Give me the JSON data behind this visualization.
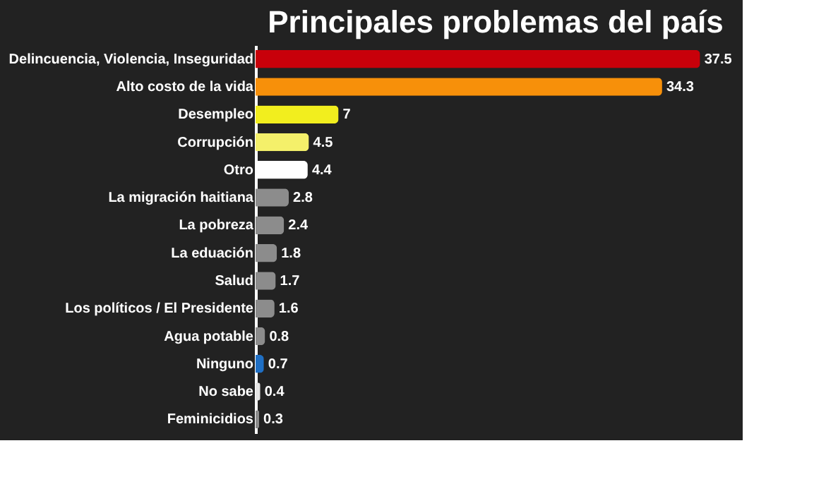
{
  "chart_data": {
    "type": "bar",
    "orientation": "horizontal",
    "title": "Principales problemas del país",
    "categories": [
      "Delincuencia, Violencia, Inseguridad",
      "Alto costo de la vida",
      "Desempleo",
      "Corrupción",
      "Otro",
      "La migración haitiana",
      "La pobreza",
      "La eduación",
      "Salud",
      "Los políticos / El Presidente",
      "Agua potable",
      "Ninguno",
      "No sabe",
      "Feminicidios"
    ],
    "values": [
      37.5,
      34.3,
      7,
      4.5,
      4.4,
      2.8,
      2.4,
      1.8,
      1.7,
      1.6,
      0.8,
      0.7,
      0.4,
      0.3
    ],
    "colors": [
      "#c8000a",
      "#f7900a",
      "#f2ee1e",
      "#f4f06a",
      "#ffffff",
      "#8c8c8c",
      "#8c8c8c",
      "#8c8c8c",
      "#8c8c8c",
      "#8c8c8c",
      "#8c8c8c",
      "#1f6fc4",
      "#e6e6e6",
      "#8c8c8c"
    ],
    "data_labels": true,
    "grid": false
  }
}
